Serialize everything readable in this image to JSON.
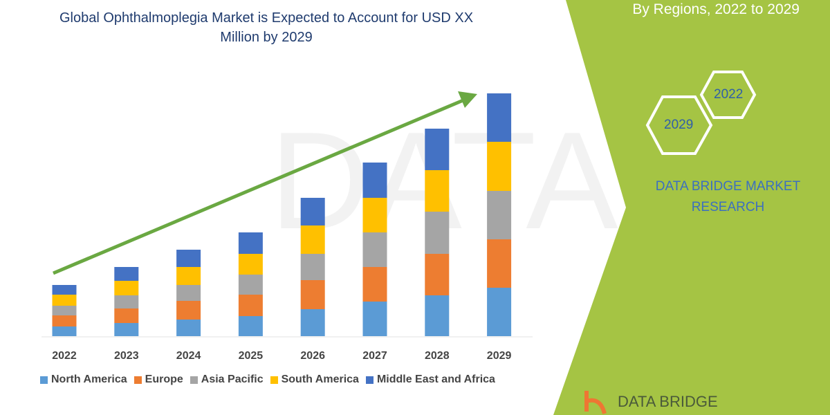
{
  "header": {
    "title": "Global Ophthalmoplegia Market is Expected to Account for USD XX Million by 2029",
    "subtitle": "By Regions, 2022 to 2029"
  },
  "side": {
    "hex_years": [
      "2022",
      "2029"
    ],
    "brand": "DATA BRIDGE MARKET RESEARCH",
    "logo_text": "DATA BRIDGE"
  },
  "colors": {
    "panel": "#a5c444",
    "arrow": "#6aa842",
    "brand": "#3b6fc0"
  },
  "chart_data": {
    "type": "bar",
    "stacked": true,
    "title": "Global Ophthalmoplegia Market is Expected to Account for USD XX Million by 2029",
    "categories": [
      "2022",
      "2023",
      "2024",
      "2025",
      "2026",
      "2027",
      "2028",
      "2029"
    ],
    "y_axis_shown": false,
    "grid": false,
    "legend_position": "bottom",
    "trend_arrow": true,
    "series": [
      {
        "name": "North America",
        "color": "#5b9bd5",
        "values": [
          14,
          19,
          24,
          29,
          39,
          50,
          59,
          70
        ]
      },
      {
        "name": "Europe",
        "color": "#ed7d31",
        "values": [
          16,
          21,
          27,
          31,
          42,
          50,
          60,
          70
        ]
      },
      {
        "name": "Asia Pacific",
        "color": "#a5a5a5",
        "values": [
          14,
          19,
          23,
          29,
          38,
          50,
          61,
          70
        ]
      },
      {
        "name": "South America",
        "color": "#ffc000",
        "values": [
          16,
          21,
          26,
          30,
          41,
          50,
          60,
          71
        ]
      },
      {
        "name": "Middle East and Africa",
        "color": "#4472c4",
        "values": [
          14,
          20,
          25,
          31,
          40,
          51,
          60,
          70
        ]
      }
    ]
  }
}
